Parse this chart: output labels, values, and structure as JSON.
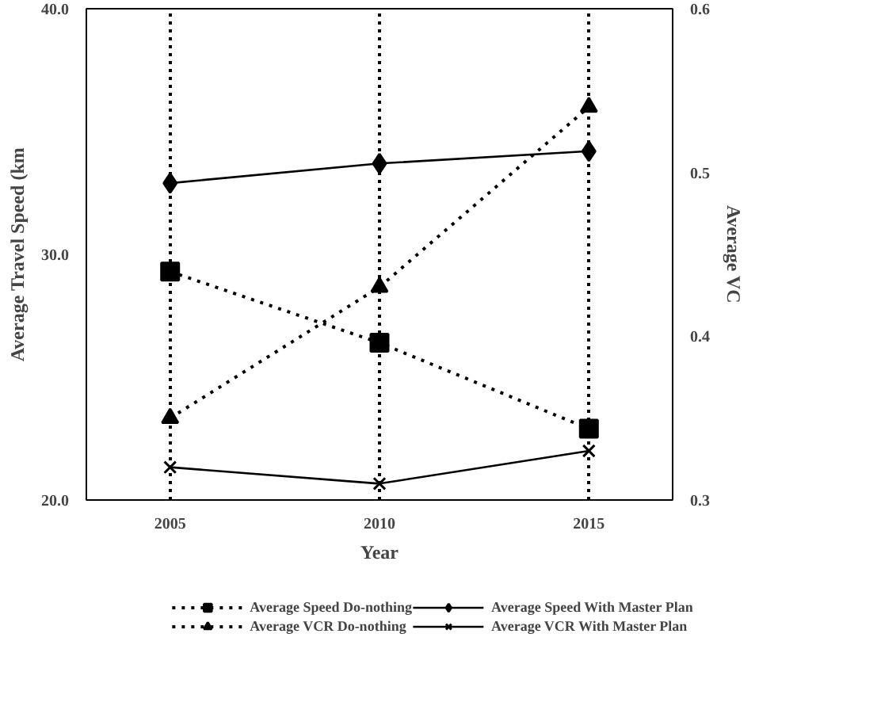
{
  "chart_data": {
    "type": "line",
    "xlabel": "Year",
    "ylabel": "Average Travel Speed (km",
    "y2label": "Average VC",
    "x": [
      2005,
      2010,
      2015
    ],
    "xlim": [
      2003,
      2017
    ],
    "xticks": [
      2005,
      2010,
      2015
    ],
    "ylim": [
      20,
      40
    ],
    "yticks": [
      {
        "value": 20,
        "label": "20.0"
      },
      {
        "value": 30,
        "label": "30.0"
      },
      {
        "value": 40,
        "label": "40.0"
      }
    ],
    "y2lim": [
      0.3,
      0.6
    ],
    "y2ticks": [
      0.3,
      0.4,
      0.5,
      0.6
    ],
    "grid": "x",
    "legend": "bottom",
    "series": [
      {
        "name": "Average Speed Do-nothing",
        "color": "#000000",
        "values": [
          29.3,
          26.4,
          22.9
        ],
        "marker": "square",
        "line_style": "dotted"
      },
      {
        "name": "Average Speed With Master Plan",
        "color": "#000000",
        "values": [
          32.9,
          33.7,
          34.2
        ],
        "marker": "diamond",
        "line_style": "solid"
      },
      {
        "name": "Average VCR Do-nothing",
        "color": "#000000",
        "values": [
          0.35,
          0.43,
          0.54
        ],
        "marker": "triangle",
        "line_style": "dotted",
        "axis": "y2"
      },
      {
        "name": "Average VCR With Master Plan",
        "color": "#000000",
        "values": [
          0.32,
          0.31,
          0.33
        ],
        "marker": "x",
        "line_style": "solid",
        "axis": "y2"
      }
    ]
  }
}
